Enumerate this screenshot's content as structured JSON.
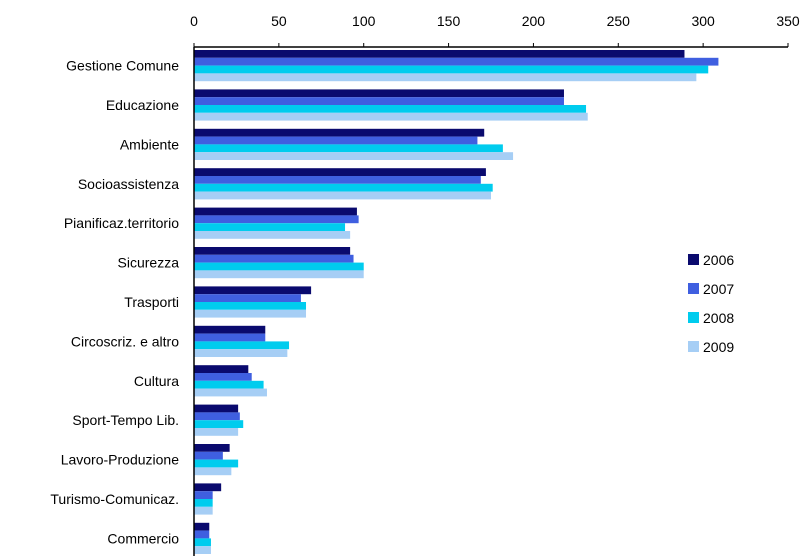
{
  "chart_data": {
    "type": "bar",
    "orientation": "horizontal",
    "title": "",
    "xlabel": "",
    "ylabel": "",
    "xlim": [
      0,
      350
    ],
    "x_ticks": [
      "0",
      "50",
      "100",
      "150",
      "200",
      "250",
      "300",
      "350"
    ],
    "x_axis_position": "top",
    "grid": false,
    "legend_position": "right",
    "categories": [
      "Gestione Comune",
      "Educazione",
      "Ambiente",
      "Socioassistenza",
      "Pianificaz.territorio",
      "Sicurezza",
      "Trasporti",
      "Circoscriz. e altro",
      "Cultura",
      "Sport-Tempo Lib.",
      "Lavoro-Produzione",
      "Turismo-Comunicaz.",
      "Commercio"
    ],
    "series": [
      {
        "name": "2006",
        "color": "#0a0a6e",
        "values": [
          289,
          218,
          171,
          172,
          96,
          92,
          69,
          42,
          32,
          26,
          21,
          16,
          9
        ]
      },
      {
        "name": "2007",
        "color": "#3f5fe0",
        "values": [
          309,
          218,
          167,
          169,
          97,
          94,
          63,
          42,
          34,
          27,
          17,
          11,
          9
        ]
      },
      {
        "name": "2008",
        "color": "#00ccee",
        "values": [
          303,
          231,
          182,
          176,
          89,
          100,
          66,
          56,
          41,
          29,
          26,
          11,
          10
        ]
      },
      {
        "name": "2009",
        "color": "#a6cef5",
        "values": [
          296,
          232,
          188,
          175,
          92,
          100,
          66,
          55,
          43,
          26,
          22,
          11,
          10
        ]
      }
    ]
  }
}
